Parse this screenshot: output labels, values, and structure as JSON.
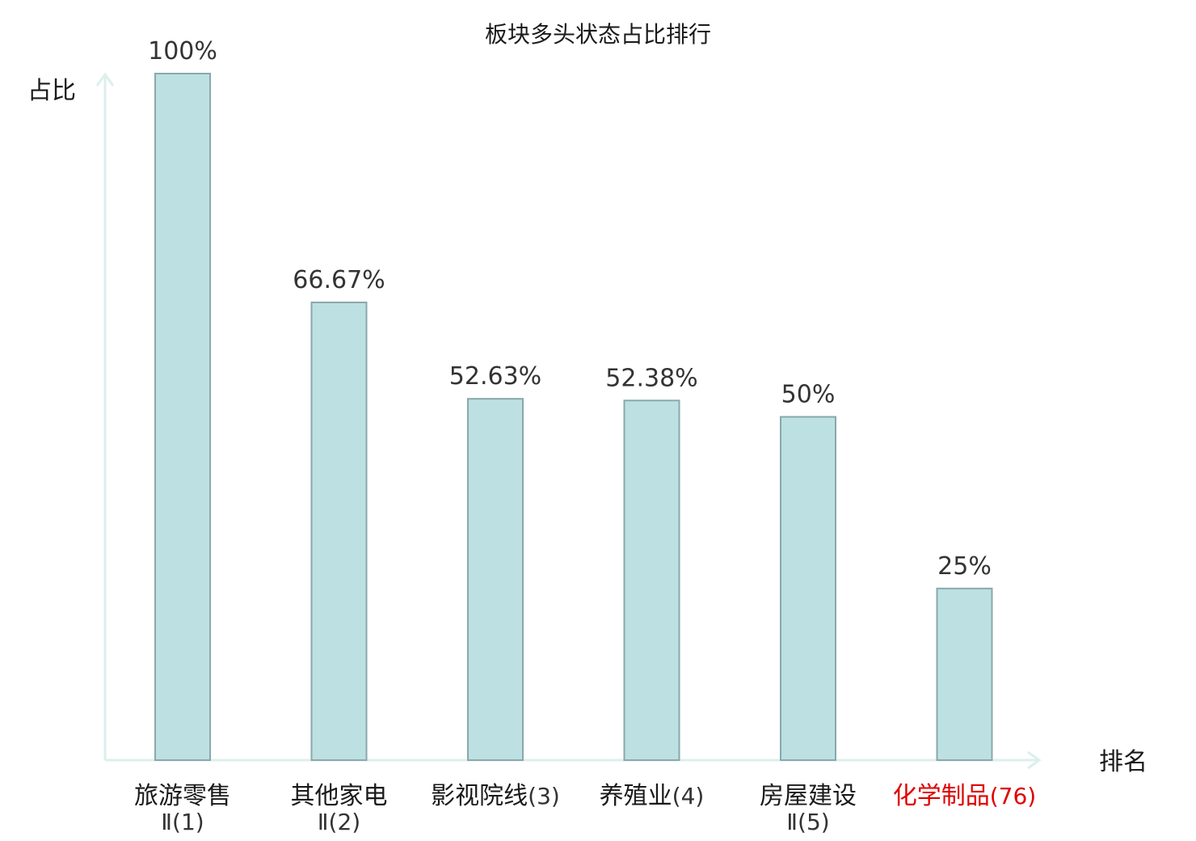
{
  "chart_data": {
    "type": "bar",
    "title": "板块多头状态占比排行",
    "ylabel": "占比",
    "xlabel": "排名",
    "ylim": [
      0,
      100
    ],
    "unit": "%",
    "grid": false,
    "bar_color": "#bde1e3",
    "bar_border": "#8aa8ab",
    "axis_color": "#dcefec",
    "highlight_color": "#e00000",
    "categories": [
      {
        "name": "旅游零售",
        "rank": "Ⅱ(1)",
        "value": 100,
        "label": "100%",
        "highlight": false
      },
      {
        "name": "其他家电",
        "rank": "Ⅱ(2)",
        "value": 66.67,
        "label": "66.67%",
        "highlight": false
      },
      {
        "name": "影视院线",
        "rank": "(3)",
        "value": 52.63,
        "label": "52.63%",
        "highlight": false
      },
      {
        "name": "养殖业",
        "rank": "(4)",
        "value": 52.38,
        "label": "52.38%",
        "highlight": false
      },
      {
        "name": "房屋建设",
        "rank": "Ⅱ(5)",
        "value": 50,
        "label": "50%",
        "highlight": false
      },
      {
        "name": "化学制品",
        "rank": "(76)",
        "value": 25,
        "label": "25%",
        "highlight": true
      }
    ]
  }
}
